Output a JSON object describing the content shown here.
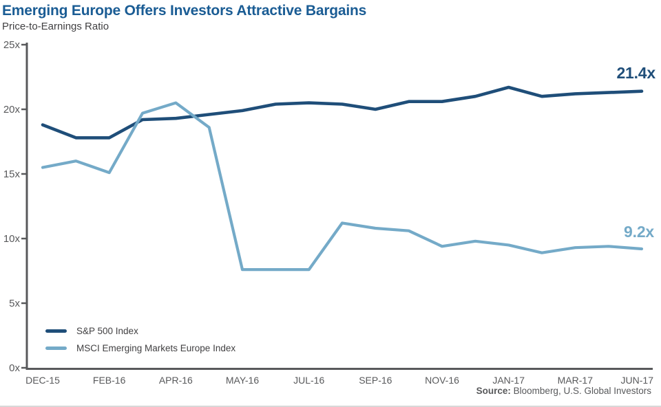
{
  "header": {
    "title": "Emerging Europe Offers Investors Attractive Bargains",
    "subtitle": "Price-to-Earnings Ratio"
  },
  "chart_data": {
    "type": "line",
    "title": "Emerging Europe Offers Investors Attractive Bargains",
    "ylabel": "Price-to-Earnings Ratio",
    "ylim": [
      0,
      25
    ],
    "grid": false,
    "legend_position": "inside-bottom-left",
    "y_ticks": [
      {
        "label": "25x",
        "value": 25
      },
      {
        "label": "20x",
        "value": 20
      },
      {
        "label": "15x",
        "value": 15
      },
      {
        "label": "10x",
        "value": 10
      },
      {
        "label": "5x",
        "value": 5
      },
      {
        "label": "0x",
        "value": 0
      }
    ],
    "x_labels": [
      "DEC-15",
      "FEB-16",
      "APR-16",
      "MAY-16",
      "JUL-16",
      "SEP-16",
      "NOV-16",
      "JAN-17",
      "MAR-17",
      "JUN-17"
    ],
    "series": [
      {
        "name": "S&P 500 Index",
        "color": "#1f4e79",
        "end_label": "21.4x",
        "values": [
          18.8,
          17.8,
          17.8,
          19.2,
          19.3,
          19.6,
          19.9,
          20.4,
          20.5,
          20.4,
          20.0,
          20.6,
          20.6,
          21.0,
          21.7,
          21.0,
          21.2,
          21.3,
          21.4
        ]
      },
      {
        "name": "MSCI Emerging Markets Europe Index",
        "color": "#74aac8",
        "end_label": "9.2x",
        "values": [
          15.5,
          16.0,
          15.1,
          19.7,
          20.5,
          18.6,
          7.6,
          7.6,
          7.6,
          11.2,
          10.8,
          10.6,
          9.4,
          9.8,
          9.5,
          8.9,
          9.3,
          9.4,
          9.2
        ]
      }
    ]
  },
  "footer": {
    "source_label": "Source:",
    "source_text": " Bloomberg, U.S. Global Investors"
  },
  "colors": {
    "title": "#1a5c94",
    "axis": "#58595b",
    "tick_text": "#58595b",
    "body_text": "#414042"
  }
}
